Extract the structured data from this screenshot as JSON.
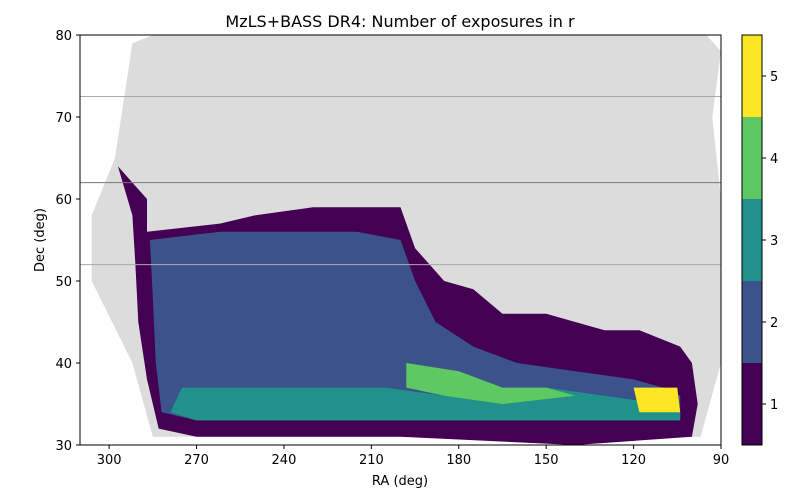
{
  "chart_data": {
    "type": "heatmap",
    "title": "MzLS+BASS DR4: Number of exposures in r",
    "xlabel": "RA (deg)",
    "ylabel": "Dec (deg)",
    "xlim": [
      310,
      90
    ],
    "ylim": [
      30,
      80
    ],
    "x_ticks": [
      300,
      270,
      240,
      210,
      180,
      150,
      120,
      90
    ],
    "y_ticks": [
      30,
      40,
      50,
      60,
      70,
      80
    ],
    "colorbar": {
      "levels": [
        1,
        2,
        3,
        4,
        5
      ],
      "colors": [
        "#440154",
        "#3b528b",
        "#21918c",
        "#5ec962",
        "#fde725"
      ],
      "range": [
        0.5,
        5.5
      ]
    },
    "footprint_color": "#dcdcdc",
    "reference_lines": {
      "horizontal_dec": [
        72.5,
        62,
        52
      ],
      "colors": [
        "#aaaaaa",
        "#777777",
        "#aaaaaa"
      ]
    },
    "regions": {
      "footprint": [
        [
          306,
          58
        ],
        [
          298,
          65
        ],
        [
          292,
          79
        ],
        [
          285,
          80
        ],
        [
          95,
          80
        ],
        [
          90,
          78
        ],
        [
          93,
          70
        ],
        [
          90,
          60
        ],
        [
          90,
          40
        ],
        [
          97,
          31
        ],
        [
          285,
          31
        ],
        [
          292,
          40
        ],
        [
          306,
          50
        ]
      ],
      "exposures_1": [
        [
          297,
          64
        ],
        [
          292,
          62
        ],
        [
          287,
          60
        ],
        [
          287,
          56
        ],
        [
          262,
          57
        ],
        [
          250,
          58
        ],
        [
          230,
          59
        ],
        [
          200,
          59
        ],
        [
          195,
          54
        ],
        [
          185,
          50
        ],
        [
          175,
          49
        ],
        [
          165,
          46
        ],
        [
          150,
          46
        ],
        [
          140,
          45
        ],
        [
          130,
          44
        ],
        [
          118,
          44
        ],
        [
          104,
          42
        ],
        [
          100,
          40
        ],
        [
          98,
          35
        ],
        [
          100,
          31
        ],
        [
          140,
          30
        ],
        [
          200,
          31
        ],
        [
          270,
          31
        ],
        [
          283,
          32
        ],
        [
          287,
          38
        ],
        [
          290,
          45
        ],
        [
          291,
          52
        ],
        [
          292,
          58
        ]
      ],
      "exposures_2": [
        [
          286,
          55
        ],
        [
          262,
          56
        ],
        [
          240,
          56
        ],
        [
          215,
          56
        ],
        [
          200,
          55
        ],
        [
          195,
          50
        ],
        [
          188,
          45
        ],
        [
          175,
          42
        ],
        [
          160,
          40
        ],
        [
          140,
          39
        ],
        [
          120,
          38
        ],
        [
          110,
          37
        ],
        [
          104,
          36
        ],
        [
          104,
          33
        ],
        [
          130,
          33
        ],
        [
          180,
          33
        ],
        [
          230,
          33
        ],
        [
          270,
          33
        ],
        [
          282,
          34
        ],
        [
          284,
          40
        ],
        [
          285,
          48
        ]
      ],
      "exposures_3": [
        [
          275,
          37
        ],
        [
          250,
          37
        ],
        [
          225,
          37
        ],
        [
          205,
          37
        ],
        [
          185,
          36
        ],
        [
          170,
          36
        ],
        [
          150,
          37
        ],
        [
          130,
          36
        ],
        [
          110,
          35
        ],
        [
          104,
          34
        ],
        [
          104,
          33
        ],
        [
          200,
          33
        ],
        [
          270,
          33
        ],
        [
          279,
          34
        ]
      ],
      "exposures_4": [
        [
          198,
          40
        ],
        [
          180,
          39
        ],
        [
          165,
          37
        ],
        [
          150,
          37
        ],
        [
          140,
          36
        ],
        [
          165,
          35
        ],
        [
          185,
          36
        ],
        [
          198,
          37
        ]
      ],
      "exposures_5": [
        [
          120,
          37
        ],
        [
          105,
          37
        ],
        [
          104,
          34
        ],
        [
          118,
          34
        ]
      ]
    }
  }
}
